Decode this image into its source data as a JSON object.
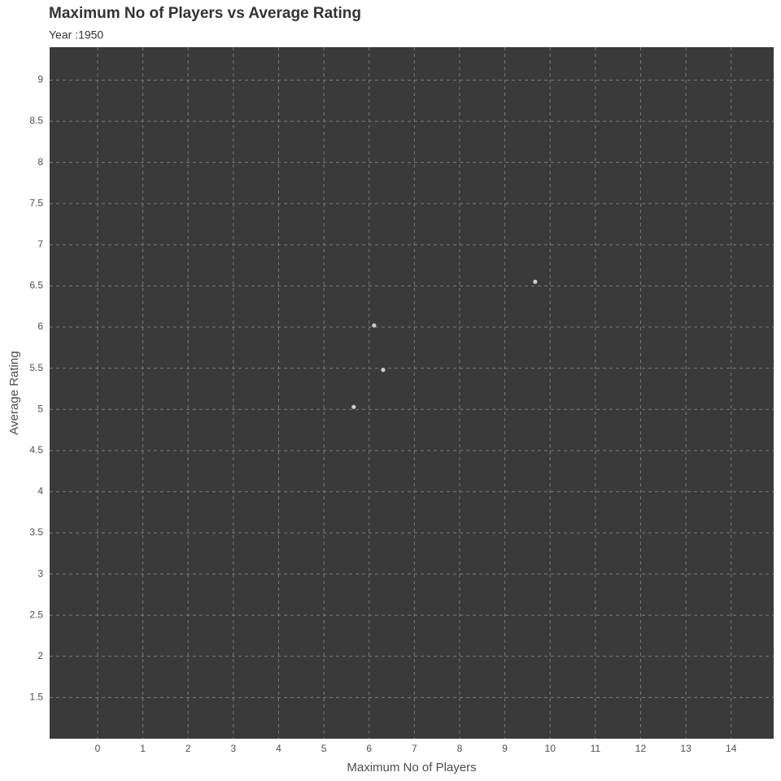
{
  "chart_data": {
    "type": "scatter",
    "title": "Maximum No of Players vs Average Rating",
    "subtitle": "Year :1950",
    "x_label": "Maximum No of Players",
    "y_label": "Average Rating",
    "x": [
      5.66,
      6.11,
      6.31,
      9.67
    ],
    "values": [
      5.03,
      6.02,
      5.48,
      6.55
    ],
    "color": "#cccccc",
    "xlim": [
      -1.06,
      14.94
    ],
    "ylim": [
      1.0,
      9.4
    ],
    "xticks": [
      0,
      1,
      2,
      3,
      4,
      5,
      6,
      7,
      8,
      9,
      10,
      11,
      12,
      13,
      14
    ],
    "yticks": [
      1.5,
      2,
      2.5,
      3,
      3.5,
      4,
      4.5,
      5,
      5.5,
      6,
      6.5,
      7,
      7.5,
      8,
      8.5,
      9
    ],
    "grid": true
  }
}
